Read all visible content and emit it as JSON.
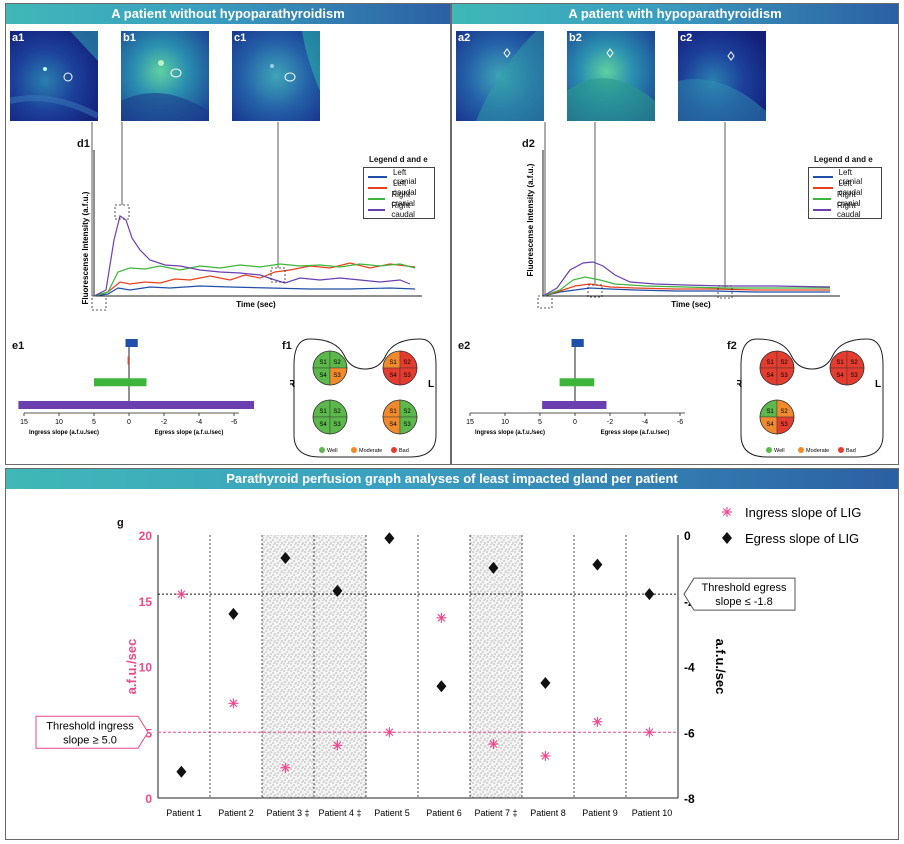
{
  "headers": {
    "left": "A patient without hypoparathyroidism",
    "right": "A patient with hypoparathyroidism",
    "bottom": "Parathyroid perfusion graph analyses of least impacted gland per patient"
  },
  "panel_labels": {
    "a1": "a1",
    "b1": "b1",
    "c1": "c1",
    "a2": "a2",
    "b2": "b2",
    "c2": "c2",
    "d1": "d1",
    "d2": "d2",
    "e1": "e1",
    "e2": "e2",
    "f1": "f1",
    "f2": "f2",
    "g": "g"
  },
  "trace": {
    "ylabel": "Fluorescense Intensity (a.f.u.)",
    "xlabel": "Time (sec)",
    "legend_title": "Legend d and e",
    "legend": [
      {
        "name": "Left cranial",
        "color": "#1f4fa8"
      },
      {
        "name": "Left caudal",
        "color": "#e8401c"
      },
      {
        "name": "Right cranial",
        "color": "#3db53a"
      },
      {
        "name": "Right caudal",
        "color": "#6a3fb0"
      }
    ]
  },
  "slopes": {
    "ingress_label": "Ingress slope (a.f.u./sec)",
    "egress_label": "Egress slope (a.f.u./sec)",
    "ticks": [
      "15",
      "10",
      "5",
      "0",
      "-2",
      "-4",
      "-6"
    ],
    "e1_bars": [
      {
        "color": "#1f4fa8",
        "from": -0.5,
        "to": 0.5
      },
      {
        "color": "#e8401c",
        "from": 0,
        "to": 0.2
      },
      {
        "color": "#3db53a",
        "from": -1,
        "to": 5
      },
      {
        "color": "#6a3fb0",
        "from": -7.2,
        "to": 15.8
      }
    ],
    "e2_bars": [
      {
        "color": "#1f4fa8",
        "from": -0.5,
        "to": 0.5
      },
      {
        "color": "#3db53a",
        "from": -1.1,
        "to": 2.2
      },
      {
        "color": "#6a3fb0",
        "from": -1.8,
        "to": 4.7
      }
    ]
  },
  "gland": {
    "R": "R",
    "L": "L",
    "segments": [
      "S1",
      "S2",
      "S4",
      "S3"
    ],
    "legend": [
      {
        "name": "Well",
        "color": "#5cb84a"
      },
      {
        "name": "Moderate",
        "color": "#f08a2c"
      },
      {
        "name": "Bad",
        "color": "#e43d2f"
      }
    ],
    "f1": [
      [
        "#5cb84a",
        "#5cb84a",
        "#5cb84a",
        "#f08a2c"
      ],
      [
        "#f08a2c",
        "#e43d2f",
        "#e43d2f",
        "#e43d2f"
      ],
      [
        "#5cb84a",
        "#5cb84a",
        "#5cb84a",
        "#5cb84a"
      ],
      [
        "#f08a2c",
        "#5cb84a",
        "#f08a2c",
        "#5cb84a"
      ]
    ],
    "f2": [
      [
        "#e43d2f",
        "#e43d2f",
        "#e43d2f",
        "#e43d2f"
      ],
      [
        "#e43d2f",
        "#e43d2f",
        "#e43d2f",
        "#e43d2f"
      ],
      [
        "#5cb84a",
        "#f08a2c",
        "#f08a2c",
        "#e43d2f"
      ]
    ]
  },
  "chart_data": {
    "type": "scatter",
    "title": "Parathyroid perfusion graph analyses of least impacted gland per patient",
    "categories": [
      "Patient 1",
      "Patient 2",
      "Patient 3 ‡",
      "Patient 4 ‡",
      "Patient 5",
      "Patient 6",
      "Patient 7 ‡",
      "Patient 8",
      "Patient 9",
      "Patient 10"
    ],
    "shaded_categories": [
      2,
      3,
      6
    ],
    "ylabel_left": "a.f.u./sec",
    "ylabel_right": "a.f.u./sec",
    "ylim_left": [
      0,
      20
    ],
    "ylim_right": [
      -8,
      0
    ],
    "yticks_left": [
      "20",
      "15",
      "10",
      "5",
      "0"
    ],
    "yticks_right": [
      "0",
      "-2",
      "-4",
      "-6",
      "-8"
    ],
    "series": [
      {
        "name": "Ingress slope of LIG",
        "axis": "left",
        "marker": "asterisk",
        "color": "#f0468a",
        "values": [
          15.5,
          7.2,
          2.3,
          4.0,
          5.0,
          13.7,
          4.1,
          3.2,
          5.8,
          5.0
        ]
      },
      {
        "name": "Egress slope of LIG",
        "axis": "right",
        "marker": "diamond",
        "color": "#111111",
        "values": [
          -7.2,
          -2.4,
          -0.7,
          -1.7,
          -0.1,
          -4.6,
          -1.0,
          -4.5,
          -0.9,
          -1.8
        ]
      }
    ],
    "threshold_ingress": {
      "value": 5.0,
      "label_line1": "Threshold ingress",
      "label_line2": "slope ≥ 5.0"
    },
    "threshold_egress": {
      "value": -1.8,
      "label_line1": "Threshold egress",
      "label_line2": "slope ≤ -1.8"
    }
  }
}
